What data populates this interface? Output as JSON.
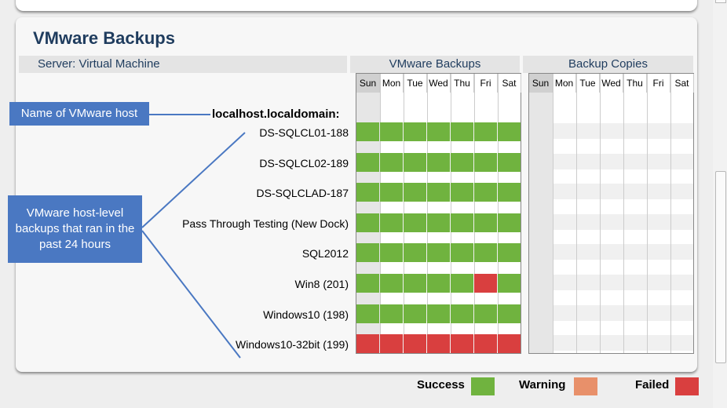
{
  "title": "VMware Backups",
  "header": {
    "server_label": "Server: Virtual Machine",
    "group1": "VMware Backups",
    "group2": "Backup Copies"
  },
  "days": [
    "Sun",
    "Mon",
    "Tue",
    "Wed",
    "Thu",
    "Fri",
    "Sat"
  ],
  "host": "localhost.localdomain:",
  "rows": [
    {
      "name": "DS-SQLCL01-188",
      "status": [
        "success",
        "success",
        "success",
        "success",
        "success",
        "success",
        "success"
      ]
    },
    {
      "name": "DS-SQLCL02-189",
      "status": [
        "success",
        "success",
        "success",
        "success",
        "success",
        "success",
        "success"
      ]
    },
    {
      "name": "DS-SQLCLAD-187",
      "status": [
        "success",
        "success",
        "success",
        "success",
        "success",
        "success",
        "success"
      ]
    },
    {
      "name": "Pass Through Testing (New Dock)",
      "status": [
        "success",
        "success",
        "success",
        "success",
        "success",
        "success",
        "success"
      ]
    },
    {
      "name": "SQL2012",
      "status": [
        "success",
        "success",
        "success",
        "success",
        "success",
        "success",
        "success"
      ]
    },
    {
      "name": "Win8 (201)",
      "status": [
        "success",
        "success",
        "success",
        "success",
        "success",
        "failed",
        "success"
      ]
    },
    {
      "name": "Windows10 (198)",
      "status": [
        "success",
        "success",
        "success",
        "success",
        "success",
        "success",
        "success"
      ]
    },
    {
      "name": "Windows10-32bit (199)",
      "status": [
        "failed",
        "failed",
        "failed",
        "failed",
        "failed",
        "failed",
        "failed"
      ]
    }
  ],
  "callouts": {
    "host": "Name of VMware host",
    "backups": "VMware host-level backups that ran in the past 24 hours"
  },
  "legend": {
    "success": "Success",
    "warning": "Warning",
    "failed": "Failed"
  },
  "colors": {
    "success": "#70b33f",
    "warning": "#e8906a",
    "failed": "#d93f3f",
    "callout": "#4a78c2",
    "title": "#1f3c5e"
  }
}
